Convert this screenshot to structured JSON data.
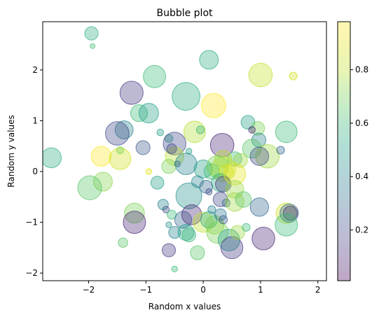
{
  "chart_data": {
    "type": "scatter",
    "title": "Bubble plot",
    "xlabel": "Random x values",
    "ylabel": "Random y values",
    "xlim": [
      -2.8,
      2.15
    ],
    "ylim": [
      -2.15,
      2.95
    ],
    "xticks": [
      -2,
      -1,
      0,
      1,
      2
    ],
    "yticks": [
      -2,
      -1,
      0,
      1,
      2
    ],
    "grid": false,
    "marker_opacity": 0.35,
    "colorbar": {
      "colormap": "viridis",
      "range": [
        0.01,
        0.98
      ],
      "ticks": [
        0.2,
        0.4,
        0.6,
        0.8
      ]
    },
    "points": [
      {
        "x": -1.95,
        "y": 2.72,
        "size": 0.34,
        "c": 0.55
      },
      {
        "x": -1.93,
        "y": 2.47,
        "size": 0.08,
        "c": 0.62
      },
      {
        "x": 0.1,
        "y": 2.2,
        "size": 0.48,
        "c": 0.55
      },
      {
        "x": -0.85,
        "y": 1.87,
        "size": 0.57,
        "c": 0.6
      },
      {
        "x": 1.0,
        "y": 1.9,
        "size": 0.6,
        "c": 0.82
      },
      {
        "x": 1.57,
        "y": 1.88,
        "size": 0.2,
        "c": 0.85
      },
      {
        "x": -1.25,
        "y": 1.55,
        "size": 0.59,
        "c": 0.15
      },
      {
        "x": -0.3,
        "y": 1.48,
        "size": 0.71,
        "c": 0.55
      },
      {
        "x": 0.18,
        "y": 1.3,
        "size": 0.62,
        "c": 0.98
      },
      {
        "x": -1.12,
        "y": 1.15,
        "size": 0.43,
        "c": 0.6
      },
      {
        "x": -0.95,
        "y": 1.15,
        "size": 0.5,
        "c": 0.5
      },
      {
        "x": 0.78,
        "y": 0.97,
        "size": 0.35,
        "c": 0.5
      },
      {
        "x": 0.95,
        "y": 0.85,
        "size": 0.35,
        "c": 0.7
      },
      {
        "x": -1.38,
        "y": 0.82,
        "size": 0.46,
        "c": 0.4
      },
      {
        "x": -1.5,
        "y": 0.75,
        "size": 0.6,
        "c": 0.2
      },
      {
        "x": -0.15,
        "y": 0.78,
        "size": 0.55,
        "c": 0.78
      },
      {
        "x": 1.45,
        "y": 0.78,
        "size": 0.55,
        "c": 0.6
      },
      {
        "x": -0.05,
        "y": 0.82,
        "size": 0.2,
        "c": 0.6
      },
      {
        "x": -0.75,
        "y": 0.77,
        "size": 0.17,
        "c": 0.5
      },
      {
        "x": -0.6,
        "y": 0.65,
        "size": 0.2,
        "c": 0.5
      },
      {
        "x": 0.85,
        "y": 0.82,
        "size": 0.17,
        "c": 0.1
      },
      {
        "x": 0.97,
        "y": 0.62,
        "size": 0.36,
        "c": 0.4
      },
      {
        "x": -0.5,
        "y": 0.55,
        "size": 0.58,
        "c": 0.2
      },
      {
        "x": 0.33,
        "y": 0.52,
        "size": 0.6,
        "c": 0.1
      },
      {
        "x": 0.85,
        "y": 0.45,
        "size": 0.48,
        "c": 0.65
      },
      {
        "x": -1.05,
        "y": 0.47,
        "size": 0.36,
        "c": 0.25
      },
      {
        "x": -0.5,
        "y": 0.3,
        "size": 0.47,
        "c": 0.8
      },
      {
        "x": -0.55,
        "y": 0.45,
        "size": 0.25,
        "c": 0.2
      },
      {
        "x": -1.78,
        "y": 0.3,
        "size": 0.51,
        "c": 0.97
      },
      {
        "x": -2.65,
        "y": 0.27,
        "size": 0.51,
        "c": 0.55
      },
      {
        "x": -1.45,
        "y": 0.25,
        "size": 0.55,
        "c": 0.85
      },
      {
        "x": -1.45,
        "y": 0.42,
        "size": 0.18,
        "c": 0.7
      },
      {
        "x": 1.12,
        "y": 0.3,
        "size": 0.6,
        "c": 0.75
      },
      {
        "x": 0.98,
        "y": 0.3,
        "size": 0.47,
        "c": 0.2
      },
      {
        "x": 1.35,
        "y": 0.42,
        "size": 0.2,
        "c": 0.3
      },
      {
        "x": 0.55,
        "y": 0.25,
        "size": 0.36,
        "c": 0.6
      },
      {
        "x": 0.65,
        "y": 0.22,
        "size": 0.35,
        "c": 0.75
      },
      {
        "x": 0.35,
        "y": 0.25,
        "size": 0.43,
        "c": 0.8
      },
      {
        "x": -0.3,
        "y": 0.15,
        "size": 0.55,
        "c": 0.4
      },
      {
        "x": -0.6,
        "y": 0.1,
        "size": 0.36,
        "c": 0.7
      },
      {
        "x": -0.45,
        "y": 0.15,
        "size": 0.15,
        "c": 0.3
      },
      {
        "x": -0.25,
        "y": 0.4,
        "size": 0.15,
        "c": 0.5
      },
      {
        "x": 0.0,
        "y": 0.05,
        "size": 0.46,
        "c": 0.5
      },
      {
        "x": 0.15,
        "y": 0.0,
        "size": 0.4,
        "c": 0.6
      },
      {
        "x": 0.35,
        "y": 0.05,
        "size": 0.63,
        "c": 0.8
      },
      {
        "x": 0.25,
        "y": 0.1,
        "size": 0.55,
        "c": 0.7
      },
      {
        "x": 0.4,
        "y": 0.0,
        "size": 0.35,
        "c": 0.85
      },
      {
        "x": 0.3,
        "y": -0.22,
        "size": 0.46,
        "c": 0.55
      },
      {
        "x": 0.35,
        "y": -0.25,
        "size": 0.4,
        "c": 0.15
      },
      {
        "x": 0.55,
        "y": -0.05,
        "size": 0.55,
        "c": 0.9
      },
      {
        "x": 0.55,
        "y": -0.35,
        "size": 0.45,
        "c": 0.75
      },
      {
        "x": -0.1,
        "y": -0.2,
        "size": 0.3,
        "c": 0.4
      },
      {
        "x": 0.05,
        "y": -0.3,
        "size": 0.33,
        "c": 0.3
      },
      {
        "x": -1.75,
        "y": -0.2,
        "size": 0.48,
        "c": 0.72
      },
      {
        "x": -1.98,
        "y": -0.32,
        "size": 0.61,
        "c": 0.65
      },
      {
        "x": -0.8,
        "y": -0.22,
        "size": 0.33,
        "c": 0.5
      },
      {
        "x": -0.95,
        "y": 0.0,
        "size": 0.15,
        "c": 0.9
      },
      {
        "x": -0.25,
        "y": -0.48,
        "size": 0.66,
        "c": 0.45
      },
      {
        "x": 0.1,
        "y": -0.4,
        "size": 0.16,
        "c": 0.2
      },
      {
        "x": 0.3,
        "y": -0.55,
        "size": 0.37,
        "c": 0.2
      },
      {
        "x": 0.4,
        "y": -0.62,
        "size": 0.2,
        "c": 0.3
      },
      {
        "x": 0.55,
        "y": -0.6,
        "size": 0.47,
        "c": 0.75
      },
      {
        "x": 0.7,
        "y": -0.55,
        "size": 0.4,
        "c": 0.65
      },
      {
        "x": 0.98,
        "y": -0.7,
        "size": 0.47,
        "c": 0.3
      },
      {
        "x": 1.45,
        "y": -0.82,
        "size": 0.52,
        "c": 0.85
      },
      {
        "x": 1.5,
        "y": -0.82,
        "size": 0.47,
        "c": 0.3
      },
      {
        "x": 1.52,
        "y": -0.82,
        "size": 0.36,
        "c": 0.15
      },
      {
        "x": 1.45,
        "y": -1.05,
        "size": 0.57,
        "c": 0.6
      },
      {
        "x": -1.2,
        "y": -0.82,
        "size": 0.51,
        "c": 0.7
      },
      {
        "x": -1.2,
        "y": -1.0,
        "size": 0.57,
        "c": 0.1
      },
      {
        "x": -0.7,
        "y": -0.65,
        "size": 0.27,
        "c": 0.4
      },
      {
        "x": -0.65,
        "y": -0.75,
        "size": 0.17,
        "c": 0.2
      },
      {
        "x": -0.55,
        "y": -0.85,
        "size": 0.23,
        "c": 0.6
      },
      {
        "x": -0.35,
        "y": -0.95,
        "size": 0.43,
        "c": 0.3
      },
      {
        "x": -0.2,
        "y": -0.85,
        "size": 0.51,
        "c": 0.1
      },
      {
        "x": 0.0,
        "y": -1.0,
        "size": 0.51,
        "c": 0.8
      },
      {
        "x": 0.2,
        "y": -1.05,
        "size": 0.47,
        "c": 0.75
      },
      {
        "x": 0.1,
        "y": -0.95,
        "size": 0.42,
        "c": 0.55
      },
      {
        "x": 0.25,
        "y": -1.2,
        "size": 0.55,
        "c": 0.7
      },
      {
        "x": 0.3,
        "y": -0.85,
        "size": 0.3,
        "c": 0.35
      },
      {
        "x": 0.35,
        "y": -0.95,
        "size": 0.21,
        "c": 0.25
      },
      {
        "x": 0.15,
        "y": -0.75,
        "size": 0.2,
        "c": 0.4
      },
      {
        "x": -0.5,
        "y": -1.2,
        "size": 0.3,
        "c": 0.4
      },
      {
        "x": -0.3,
        "y": -1.2,
        "size": 0.41,
        "c": 0.5
      },
      {
        "x": -0.6,
        "y": -1.05,
        "size": 0.15,
        "c": 0.45
      },
      {
        "x": -0.25,
        "y": -1.25,
        "size": 0.35,
        "c": 0.6
      },
      {
        "x": 0.45,
        "y": -1.35,
        "size": 0.55,
        "c": 0.5
      },
      {
        "x": 0.5,
        "y": -1.5,
        "size": 0.56,
        "c": 0.15
      },
      {
        "x": 0.6,
        "y": -1.2,
        "size": 0.36,
        "c": 0.75
      },
      {
        "x": 1.05,
        "y": -1.32,
        "size": 0.58,
        "c": 0.1
      },
      {
        "x": 0.75,
        "y": -1.1,
        "size": 0.2,
        "c": 0.6
      },
      {
        "x": -1.4,
        "y": -1.4,
        "size": 0.24,
        "c": 0.65
      },
      {
        "x": -0.6,
        "y": -1.55,
        "size": 0.34,
        "c": 0.15
      },
      {
        "x": -0.1,
        "y": -1.6,
        "size": 0.36,
        "c": 0.65
      },
      {
        "x": -0.5,
        "y": -1.92,
        "size": 0.15,
        "c": 0.6
      }
    ]
  }
}
